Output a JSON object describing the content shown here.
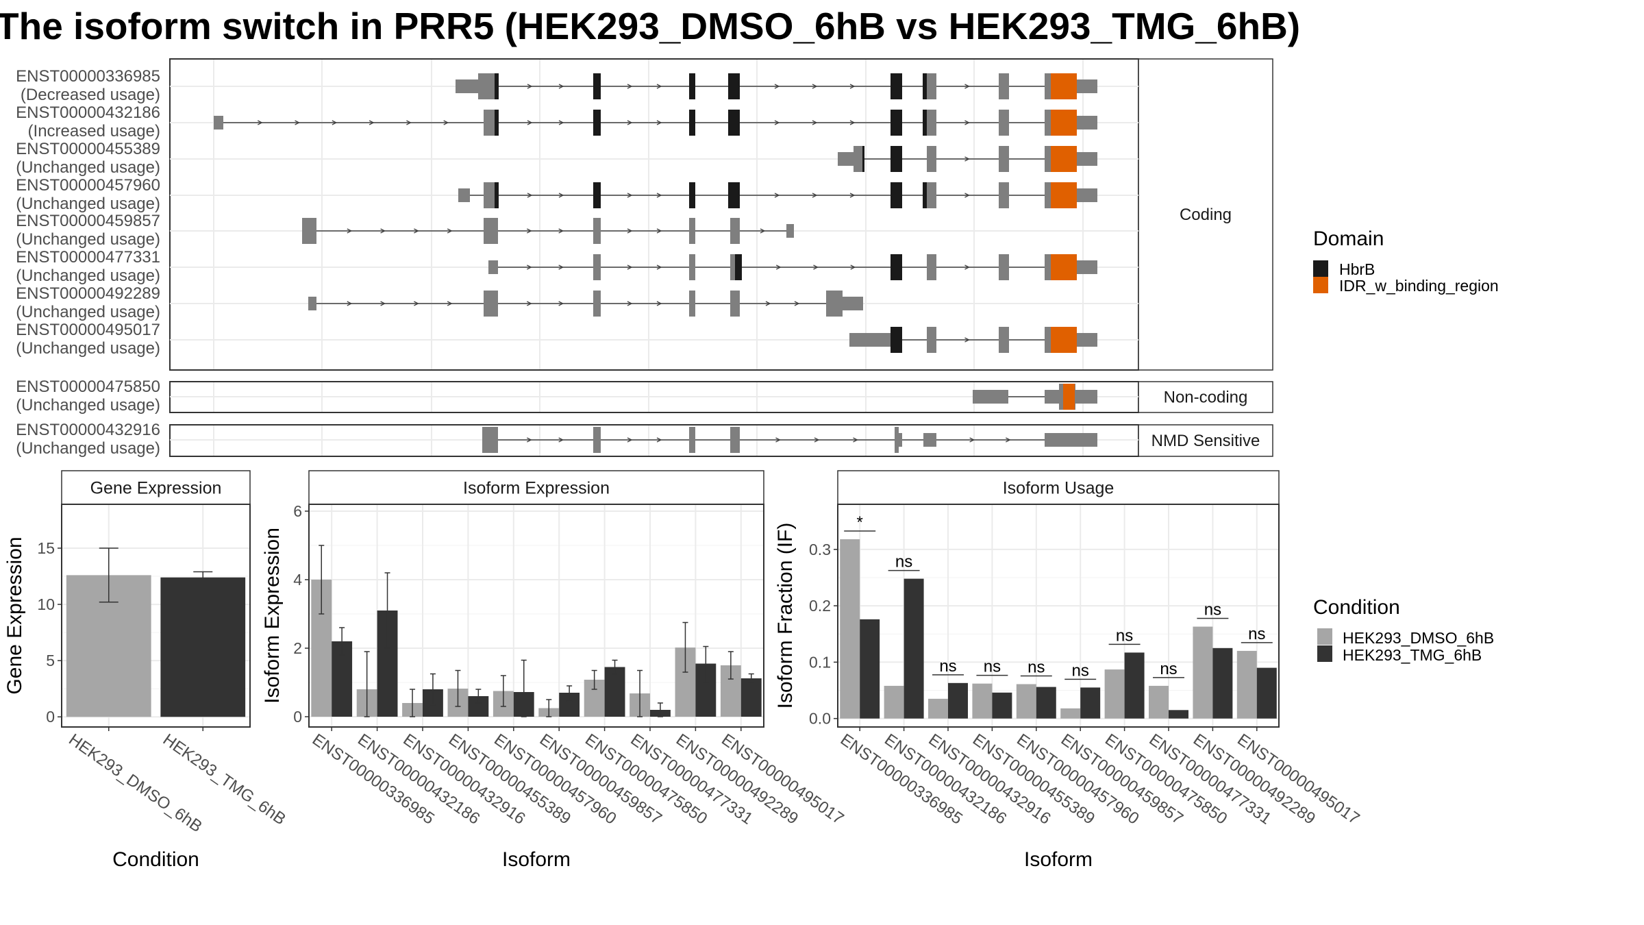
{
  "title": "The isoform switch in PRR5 (HEK293_DMSO_6hB vs HEK293_TMG_6hB)",
  "colors": {
    "dmso": "#a6a6a6",
    "tmg": "#333333",
    "exon": "#7f7f7f",
    "hbrb": "#1a1a1a",
    "idr": "#e06000",
    "intron": "#404040",
    "panel_border": "#333333",
    "grid": "#ebebeb"
  },
  "structure": {
    "groups": [
      "Coding",
      "Non-coding",
      "NMD Sensitive"
    ],
    "transcripts": [
      {
        "id": "ENST00000336985",
        "usage": "(Decreased usage)",
        "group": "Coding"
      },
      {
        "id": "ENST00000432186",
        "usage": "(Increased usage)",
        "group": "Coding"
      },
      {
        "id": "ENST00000455389",
        "usage": "(Unchanged usage)",
        "group": "Coding"
      },
      {
        "id": "ENST00000457960",
        "usage": "(Unchanged usage)",
        "group": "Coding"
      },
      {
        "id": "ENST00000459857",
        "usage": "(Unchanged usage)",
        "group": "Coding"
      },
      {
        "id": "ENST00000477331",
        "usage": "(Unchanged usage)",
        "group": "Coding"
      },
      {
        "id": "ENST00000492289",
        "usage": "(Unchanged usage)",
        "group": "Coding"
      },
      {
        "id": "ENST00000495017",
        "usage": "(Unchanged usage)",
        "group": "Coding"
      },
      {
        "id": "ENST00000475850",
        "usage": "(Unchanged usage)",
        "group": "Non-coding"
      },
      {
        "id": "ENST00000432916",
        "usage": "(Unchanged usage)",
        "group": "NMD Sensitive"
      }
    ]
  },
  "legend_domain": {
    "title": "Domain",
    "items": [
      {
        "label": "HbrB",
        "color": "#1a1a1a"
      },
      {
        "label": "IDR_w_binding_region",
        "color": "#e06000"
      }
    ]
  },
  "legend_condition": {
    "title": "Condition",
    "items": [
      {
        "label": "HEK293_DMSO_6hB",
        "color": "#a6a6a6"
      },
      {
        "label": "HEK293_TMG_6hB",
        "color": "#333333"
      }
    ]
  },
  "chart_data": [
    {
      "type": "bar",
      "title": "Gene Expression",
      "xlabel": "Condition",
      "ylabel": "Gene Expression",
      "ylim": [
        -0.9,
        18.9
      ],
      "yticks": [
        0,
        5,
        10,
        15
      ],
      "categories": [
        "HEK293_DMSO_6hB",
        "HEK293_TMG_6hB"
      ],
      "values": [
        12.6,
        12.4
      ],
      "err_low": [
        10.2,
        12.0
      ],
      "err_high": [
        15.0,
        12.9
      ]
    },
    {
      "type": "bar",
      "title": "Isoform Expression",
      "xlabel": "Isoform",
      "ylabel": "Isoform Expression",
      "ylim": [
        -0.3,
        6.2
      ],
      "yticks": [
        0,
        2,
        4,
        6
      ],
      "categories": [
        "ENST00000336985",
        "ENST00000432186",
        "ENST00000432916",
        "ENST00000455389",
        "ENST00000457960",
        "ENST00000459857",
        "ENST00000475850",
        "ENST00000477331",
        "ENST00000492289",
        "ENST00000495017"
      ],
      "series": [
        {
          "name": "HEK293_DMSO_6hB",
          "values": [
            4.0,
            0.8,
            0.4,
            0.82,
            0.75,
            0.25,
            1.08,
            0.68,
            2.02,
            1.5
          ],
          "err_low": [
            3.0,
            0.0,
            0.0,
            0.3,
            0.3,
            0.0,
            0.8,
            0.0,
            1.3,
            1.1
          ],
          "err_high": [
            5.0,
            1.9,
            0.8,
            1.35,
            1.2,
            0.5,
            1.35,
            1.35,
            2.75,
            1.9
          ]
        },
        {
          "name": "HEK293_TMG_6hB",
          "values": [
            2.2,
            3.1,
            0.8,
            0.6,
            0.72,
            0.7,
            1.45,
            0.2,
            1.55,
            1.12
          ],
          "err_low": [
            1.8,
            2.0,
            0.35,
            0.4,
            0.0,
            0.45,
            1.25,
            0.0,
            1.0,
            1.0
          ],
          "err_high": [
            2.6,
            4.2,
            1.25,
            0.8,
            1.65,
            0.9,
            1.65,
            0.4,
            2.05,
            1.25
          ]
        }
      ]
    },
    {
      "type": "bar",
      "title": "Isoform Usage",
      "xlabel": "Isoform",
      "ylabel": "Isoform Fraction (IF)",
      "ylim": [
        -0.015,
        0.38
      ],
      "yticks": [
        0.0,
        0.1,
        0.2,
        0.3
      ],
      "ytick_labels": [
        "0.0",
        "0.1",
        "0.2",
        "0.3"
      ],
      "categories": [
        "ENST00000336985",
        "ENST00000432186",
        "ENST00000432916",
        "ENST00000455389",
        "ENST00000457960",
        "ENST00000459857",
        "ENST00000475850",
        "ENST00000477331",
        "ENST00000492289",
        "ENST00000495017"
      ],
      "series": [
        {
          "name": "HEK293_DMSO_6hB",
          "values": [
            0.318,
            0.058,
            0.035,
            0.062,
            0.061,
            0.018,
            0.087,
            0.058,
            0.163,
            0.12
          ]
        },
        {
          "name": "HEK293_TMG_6hB",
          "values": [
            0.176,
            0.248,
            0.063,
            0.046,
            0.056,
            0.055,
            0.117,
            0.015,
            0.125,
            0.09
          ]
        }
      ],
      "significance": [
        "*",
        "ns",
        "ns",
        "ns",
        "ns",
        "ns",
        "ns",
        "ns",
        "ns",
        "ns"
      ]
    }
  ]
}
